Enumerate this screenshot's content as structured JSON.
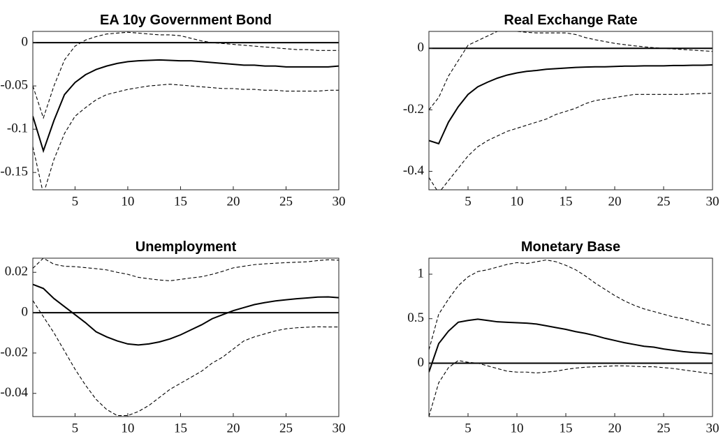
{
  "chart_data": [
    {
      "type": "line",
      "title": "EA 10y Government Bond",
      "x": [
        1,
        2,
        3,
        4,
        5,
        6,
        7,
        8,
        9,
        10,
        11,
        12,
        13,
        14,
        15,
        16,
        17,
        18,
        19,
        20,
        21,
        22,
        23,
        24,
        25,
        26,
        27,
        28,
        29,
        30
      ],
      "xlim": [
        1,
        30
      ],
      "xticks": [
        5,
        10,
        15,
        20,
        25,
        30
      ],
      "ylim": [
        -0.17,
        0.013
      ],
      "yticks": [
        -0.15,
        -0.1,
        -0.05,
        0
      ],
      "hline": 0,
      "series": [
        {
          "color": "#000000",
          "line_style": "solid",
          "values": [
            -0.085,
            -0.125,
            -0.09,
            -0.06,
            -0.046,
            -0.037,
            -0.031,
            -0.027,
            -0.024,
            -0.022,
            -0.021,
            -0.0205,
            -0.02,
            -0.0205,
            -0.021,
            -0.021,
            -0.022,
            -0.023,
            -0.024,
            -0.025,
            -0.026,
            -0.026,
            -0.027,
            -0.027,
            -0.028,
            -0.028,
            -0.028,
            -0.028,
            -0.028,
            -0.027
          ]
        },
        {
          "color": "#000000",
          "line_style": "dashed",
          "values": [
            -0.05,
            -0.087,
            -0.05,
            -0.02,
            -0.004,
            0.003,
            0.007,
            0.01,
            0.011,
            0.012,
            0.011,
            0.01,
            0.009,
            0.009,
            0.008,
            0.005,
            0.002,
            0.0,
            -0.001,
            -0.002,
            -0.003,
            -0.004,
            -0.005,
            -0.006,
            -0.007,
            -0.008,
            -0.008,
            -0.009,
            -0.009,
            -0.009
          ]
        },
        {
          "color": "#000000",
          "line_style": "dashed",
          "values": [
            -0.12,
            -0.175,
            -0.135,
            -0.105,
            -0.085,
            -0.075,
            -0.066,
            -0.06,
            -0.057,
            -0.054,
            -0.052,
            -0.05,
            -0.049,
            -0.048,
            -0.049,
            -0.05,
            -0.051,
            -0.052,
            -0.053,
            -0.053,
            -0.054,
            -0.054,
            -0.055,
            -0.055,
            -0.056,
            -0.056,
            -0.056,
            -0.056,
            -0.055,
            -0.055
          ]
        }
      ]
    },
    {
      "type": "line",
      "title": "Real Exchange Rate",
      "x": [
        1,
        2,
        3,
        4,
        5,
        6,
        7,
        8,
        9,
        10,
        11,
        12,
        13,
        14,
        15,
        16,
        17,
        18,
        19,
        20,
        21,
        22,
        23,
        24,
        25,
        26,
        27,
        28,
        29,
        30
      ],
      "xlim": [
        1,
        30
      ],
      "xticks": [
        5,
        10,
        15,
        20,
        25,
        30
      ],
      "ylim": [
        -0.46,
        0.055
      ],
      "yticks": [
        -0.4,
        -0.2,
        0
      ],
      "hline": 0,
      "series": [
        {
          "color": "#000000",
          "line_style": "solid",
          "values": [
            -0.3,
            -0.31,
            -0.24,
            -0.19,
            -0.15,
            -0.125,
            -0.11,
            -0.097,
            -0.087,
            -0.08,
            -0.075,
            -0.072,
            -0.068,
            -0.066,
            -0.064,
            -0.062,
            -0.061,
            -0.06,
            -0.06,
            -0.059,
            -0.058,
            -0.058,
            -0.057,
            -0.057,
            -0.057,
            -0.056,
            -0.056,
            -0.055,
            -0.055,
            -0.054
          ]
        },
        {
          "color": "#000000",
          "line_style": "dashed",
          "values": [
            -0.2,
            -0.16,
            -0.09,
            -0.04,
            0.01,
            0.025,
            0.04,
            0.055,
            0.058,
            0.055,
            0.052,
            0.05,
            0.05,
            0.05,
            0.05,
            0.045,
            0.035,
            0.028,
            0.022,
            0.016,
            0.012,
            0.008,
            0.005,
            0.002,
            0.0,
            -0.002,
            -0.004,
            -0.006,
            -0.008,
            -0.01
          ]
        },
        {
          "color": "#000000",
          "line_style": "dashed",
          "values": [
            -0.42,
            -0.47,
            -0.43,
            -0.39,
            -0.35,
            -0.32,
            -0.3,
            -0.285,
            -0.27,
            -0.26,
            -0.25,
            -0.24,
            -0.23,
            -0.215,
            -0.205,
            -0.195,
            -0.18,
            -0.17,
            -0.165,
            -0.16,
            -0.155,
            -0.15,
            -0.15,
            -0.15,
            -0.15,
            -0.15,
            -0.15,
            -0.148,
            -0.147,
            -0.146
          ]
        }
      ]
    },
    {
      "type": "line",
      "title": "Unemployment",
      "x": [
        1,
        2,
        3,
        4,
        5,
        6,
        7,
        8,
        9,
        10,
        11,
        12,
        13,
        14,
        15,
        16,
        17,
        18,
        19,
        20,
        21,
        22,
        23,
        24,
        25,
        26,
        27,
        28,
        29,
        30
      ],
      "xlim": [
        1,
        30
      ],
      "xticks": [
        5,
        10,
        15,
        20,
        25,
        30
      ],
      "ylim": [
        -0.0515,
        0.027
      ],
      "yticks": [
        -0.04,
        -0.02,
        0,
        0.02
      ],
      "hline": 0,
      "series": [
        {
          "color": "#000000",
          "line_style": "solid",
          "values": [
            0.014,
            0.012,
            0.007,
            0.003,
            -0.001,
            -0.005,
            -0.0095,
            -0.012,
            -0.014,
            -0.0155,
            -0.016,
            -0.0155,
            -0.0145,
            -0.013,
            -0.011,
            -0.0085,
            -0.006,
            -0.003,
            -0.001,
            0.001,
            0.0025,
            0.004,
            0.005,
            0.0058,
            0.0064,
            0.0069,
            0.0073,
            0.0077,
            0.0078,
            0.0074
          ]
        },
        {
          "color": "#000000",
          "line_style": "dashed",
          "values": [
            0.022,
            0.027,
            0.024,
            0.023,
            0.0228,
            0.0223,
            0.0218,
            0.0212,
            0.02,
            0.019,
            0.0175,
            0.0168,
            0.0162,
            0.0158,
            0.0165,
            0.0172,
            0.0178,
            0.019,
            0.0205,
            0.0222,
            0.023,
            0.0238,
            0.0242,
            0.0245,
            0.0248,
            0.025,
            0.0252,
            0.0258,
            0.0262,
            0.026
          ]
        },
        {
          "color": "#000000",
          "line_style": "dashed",
          "values": [
            0.006,
            -0.002,
            -0.01,
            -0.019,
            -0.028,
            -0.036,
            -0.043,
            -0.048,
            -0.051,
            -0.051,
            -0.049,
            -0.046,
            -0.042,
            -0.038,
            -0.035,
            -0.032,
            -0.029,
            -0.025,
            -0.022,
            -0.018,
            -0.014,
            -0.012,
            -0.0105,
            -0.009,
            -0.008,
            -0.0075,
            -0.0072,
            -0.007,
            -0.0071,
            -0.0071
          ]
        }
      ]
    },
    {
      "type": "line",
      "title": "Monetary Base",
      "x": [
        1,
        2,
        3,
        4,
        5,
        6,
        7,
        8,
        9,
        10,
        11,
        12,
        13,
        14,
        15,
        16,
        17,
        18,
        19,
        20,
        21,
        22,
        23,
        24,
        25,
        26,
        27,
        28,
        29,
        30
      ],
      "xlim": [
        1,
        30
      ],
      "xticks": [
        5,
        10,
        15,
        20,
        25,
        30
      ],
      "ylim": [
        -0.6,
        1.18
      ],
      "yticks": [
        0,
        0.5,
        1
      ],
      "hline": 0,
      "series": [
        {
          "color": "#000000",
          "line_style": "solid",
          "values": [
            -0.1,
            0.22,
            0.36,
            0.46,
            0.48,
            0.495,
            0.48,
            0.465,
            0.46,
            0.455,
            0.45,
            0.44,
            0.42,
            0.4,
            0.38,
            0.355,
            0.335,
            0.31,
            0.28,
            0.255,
            0.23,
            0.21,
            0.19,
            0.18,
            0.16,
            0.145,
            0.13,
            0.12,
            0.115,
            0.105
          ]
        },
        {
          "color": "#000000",
          "line_style": "dashed",
          "values": [
            0.15,
            0.55,
            0.72,
            0.87,
            0.97,
            1.03,
            1.05,
            1.08,
            1.11,
            1.13,
            1.12,
            1.14,
            1.16,
            1.14,
            1.1,
            1.05,
            0.98,
            0.9,
            0.83,
            0.76,
            0.7,
            0.65,
            0.61,
            0.58,
            0.55,
            0.52,
            0.5,
            0.47,
            0.44,
            0.42
          ]
        },
        {
          "color": "#000000",
          "line_style": "dashed",
          "values": [
            -0.6,
            -0.22,
            -0.05,
            0.03,
            0.01,
            0.0,
            -0.03,
            -0.06,
            -0.09,
            -0.1,
            -0.1,
            -0.11,
            -0.1,
            -0.09,
            -0.07,
            -0.055,
            -0.045,
            -0.04,
            -0.035,
            -0.03,
            -0.03,
            -0.035,
            -0.04,
            -0.04,
            -0.05,
            -0.06,
            -0.075,
            -0.09,
            -0.105,
            -0.12
          ]
        }
      ]
    }
  ]
}
